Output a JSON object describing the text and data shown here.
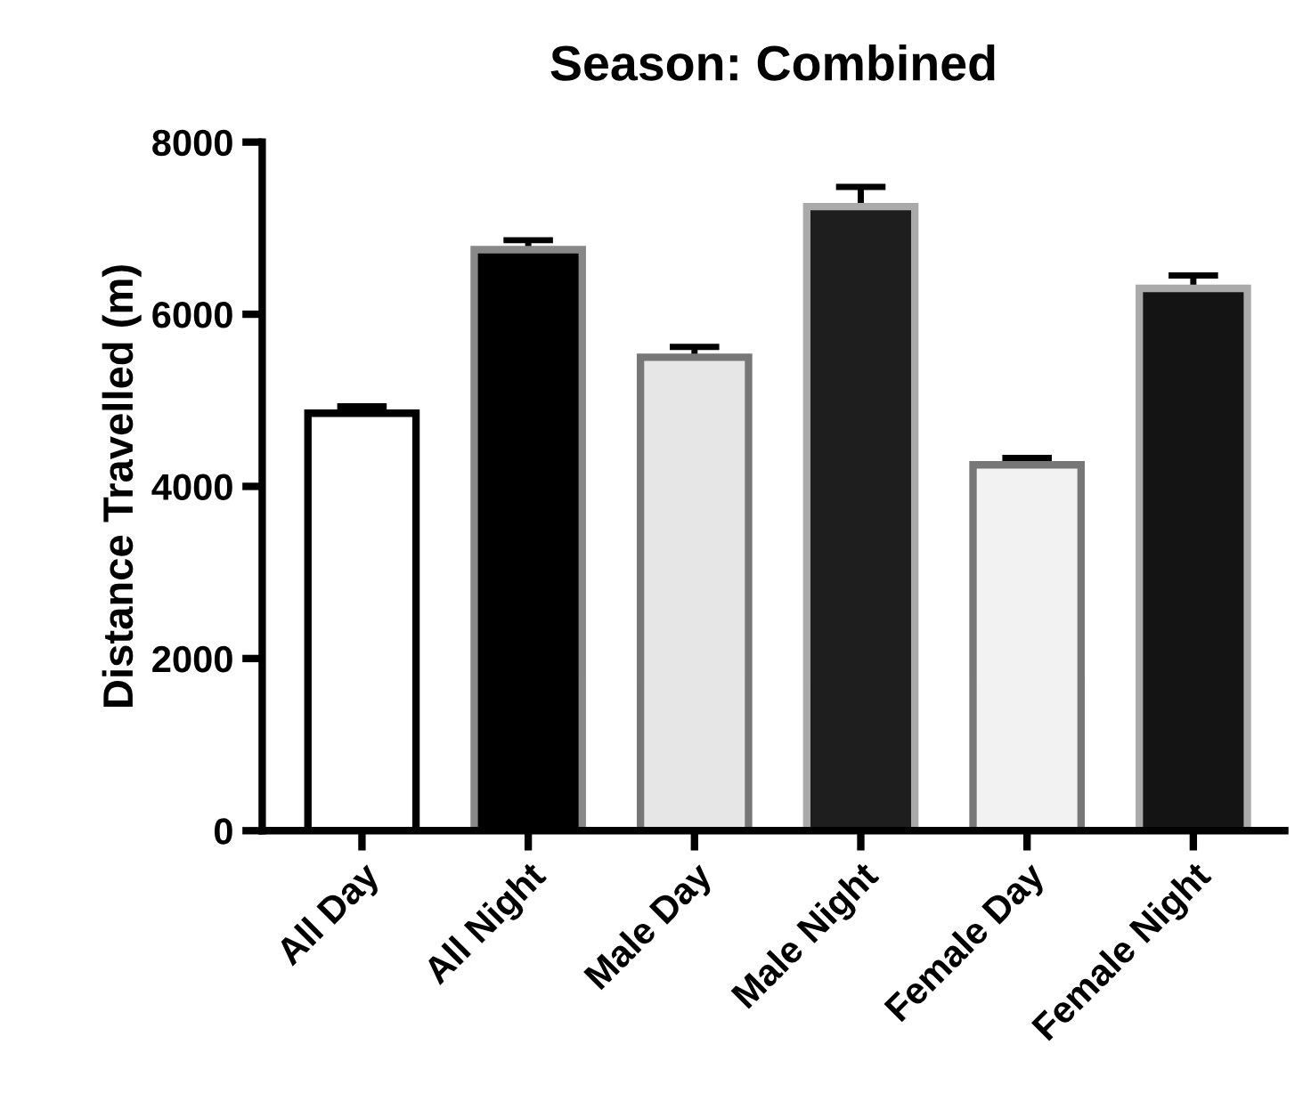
{
  "chart_data": {
    "type": "bar",
    "title": "Season: Combined",
    "ylabel": "Distance Travelled (m)",
    "categories": [
      "All Day",
      "All Night",
      "Male Day",
      "Male Night",
      "Female Day",
      "Female Night"
    ],
    "values": [
      4850,
      6750,
      5500,
      7250,
      4250,
      6300
    ],
    "errors": [
      80,
      110,
      120,
      230,
      80,
      150
    ],
    "colors": [
      "#ffffff",
      "#000000",
      "#e6e6e6",
      "#1e1e1e",
      "#f2f2f2",
      "#141414"
    ],
    "ylim": [
      0,
      8000
    ],
    "yticks": [
      0,
      2000,
      4000,
      6000,
      8000
    ],
    "grid": false
  }
}
